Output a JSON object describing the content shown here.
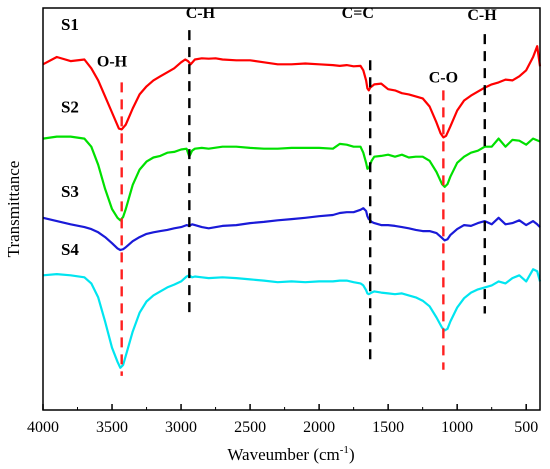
{
  "chart_data": {
    "type": "line",
    "title": "",
    "xlabel": "Waveumber (cm",
    "xlabel_sup": "-1",
    "xlabel_end": ")",
    "ylabel": "Transmittance",
    "xlim": [
      4000,
      400
    ],
    "x_reversed": true,
    "xticks": [
      "4000",
      "3500",
      "3000",
      "2500",
      "2000",
      "1500",
      "1000",
      "500"
    ],
    "xtick_values": [
      4000,
      3500,
      3000,
      2500,
      2000,
      1500,
      1000,
      500
    ],
    "ylim": [
      0,
      10
    ],
    "y_ticks_shown": false,
    "grid": false,
    "series": [
      {
        "name": "S1",
        "color": "#ff0000",
        "x": [
          4000,
          3900,
          3800,
          3700,
          3650,
          3600,
          3550,
          3500,
          3450,
          3430,
          3400,
          3350,
          3300,
          3250,
          3200,
          3150,
          3100,
          3050,
          3000,
          2970,
          2950,
          2930,
          2900,
          2850,
          2800,
          2750,
          2700,
          2600,
          2500,
          2400,
          2300,
          2200,
          2100,
          2000,
          1900,
          1850,
          1800,
          1750,
          1700,
          1680,
          1660,
          1650,
          1640,
          1630,
          1600,
          1550,
          1500,
          1450,
          1400,
          1350,
          1300,
          1250,
          1200,
          1150,
          1120,
          1100,
          1080,
          1050,
          1000,
          950,
          900,
          850,
          800,
          750,
          700,
          650,
          600,
          550,
          500,
          450,
          420,
          400
        ],
        "y": [
          8.6,
          8.78,
          8.68,
          8.72,
          8.5,
          8.2,
          7.8,
          7.4,
          7.0,
          6.98,
          7.1,
          7.5,
          7.85,
          8.05,
          8.2,
          8.3,
          8.4,
          8.5,
          8.65,
          8.72,
          8.68,
          8.6,
          8.72,
          8.75,
          8.74,
          8.75,
          8.72,
          8.7,
          8.7,
          8.65,
          8.6,
          8.6,
          8.62,
          8.6,
          8.58,
          8.56,
          8.58,
          8.55,
          8.56,
          8.45,
          8.2,
          8.0,
          7.95,
          8.02,
          8.1,
          8.12,
          7.98,
          7.95,
          7.88,
          7.85,
          7.8,
          7.75,
          7.55,
          7.15,
          6.88,
          6.78,
          6.82,
          7.05,
          7.45,
          7.7,
          7.82,
          7.92,
          8.02,
          8.1,
          8.15,
          8.22,
          8.2,
          8.3,
          8.45,
          8.78,
          9.05,
          8.55
        ]
      },
      {
        "name": "S2",
        "color": "#00e000",
        "x": [
          4000,
          3900,
          3800,
          3700,
          3650,
          3600,
          3550,
          3500,
          3460,
          3440,
          3420,
          3400,
          3350,
          3300,
          3250,
          3200,
          3150,
          3100,
          3050,
          3000,
          2960,
          2940,
          2920,
          2900,
          2850,
          2800,
          2700,
          2600,
          2500,
          2400,
          2300,
          2200,
          2100,
          2000,
          1900,
          1850,
          1800,
          1750,
          1700,
          1680,
          1660,
          1650,
          1640,
          1630,
          1620,
          1600,
          1550,
          1500,
          1450,
          1400,
          1350,
          1300,
          1250,
          1200,
          1150,
          1110,
          1090,
          1070,
          1050,
          1000,
          950,
          900,
          850,
          800,
          750,
          700,
          650,
          600,
          550,
          500,
          450,
          400
        ],
        "y": [
          6.75,
          6.8,
          6.8,
          6.75,
          6.55,
          6.1,
          5.5,
          5.0,
          4.78,
          4.72,
          4.8,
          5.0,
          5.6,
          5.98,
          6.18,
          6.28,
          6.32,
          6.4,
          6.42,
          6.48,
          6.5,
          6.3,
          6.45,
          6.5,
          6.52,
          6.5,
          6.55,
          6.55,
          6.52,
          6.5,
          6.5,
          6.52,
          6.52,
          6.52,
          6.5,
          6.62,
          6.6,
          6.55,
          6.55,
          6.4,
          6.15,
          6.0,
          6.02,
          6.1,
          6.2,
          6.3,
          6.32,
          6.35,
          6.3,
          6.35,
          6.28,
          6.3,
          6.3,
          6.2,
          5.92,
          5.62,
          5.55,
          5.62,
          5.8,
          6.15,
          6.3,
          6.4,
          6.45,
          6.55,
          6.55,
          6.75,
          6.55,
          6.72,
          6.7,
          6.6,
          6.75,
          6.68
        ]
      },
      {
        "name": "S3",
        "color": "#1a1ad8",
        "x": [
          4000,
          3900,
          3800,
          3700,
          3650,
          3600,
          3550,
          3500,
          3460,
          3440,
          3420,
          3400,
          3350,
          3300,
          3250,
          3200,
          3150,
          3100,
          3050,
          3000,
          2960,
          2940,
          2920,
          2900,
          2850,
          2800,
          2700,
          2600,
          2500,
          2400,
          2300,
          2200,
          2100,
          2000,
          1900,
          1850,
          1800,
          1750,
          1700,
          1680,
          1660,
          1650,
          1640,
          1630,
          1620,
          1600,
          1550,
          1500,
          1450,
          1400,
          1350,
          1300,
          1250,
          1200,
          1150,
          1110,
          1090,
          1070,
          1050,
          1000,
          950,
          900,
          850,
          800,
          750,
          700,
          650,
          600,
          550,
          500,
          450,
          420,
          400
        ],
        "y": [
          4.78,
          4.7,
          4.62,
          4.55,
          4.5,
          4.42,
          4.3,
          4.15,
          4.02,
          3.98,
          4.0,
          4.05,
          4.2,
          4.3,
          4.38,
          4.42,
          4.45,
          4.48,
          4.52,
          4.55,
          4.6,
          4.58,
          4.62,
          4.6,
          4.55,
          4.52,
          4.58,
          4.6,
          4.65,
          4.68,
          4.72,
          4.75,
          4.78,
          4.82,
          4.85,
          4.9,
          4.92,
          4.92,
          4.98,
          5.02,
          4.95,
          4.82,
          4.75,
          4.72,
          4.68,
          4.65,
          4.6,
          4.6,
          4.58,
          4.55,
          4.52,
          4.48,
          4.45,
          4.45,
          4.4,
          4.28,
          4.22,
          4.25,
          4.35,
          4.5,
          4.6,
          4.58,
          4.65,
          4.7,
          4.62,
          4.78,
          4.62,
          4.65,
          4.72,
          4.6,
          4.7,
          4.62,
          4.55
        ]
      },
      {
        "name": "S4",
        "color": "#00e5f0",
        "x": [
          4000,
          3900,
          3800,
          3700,
          3650,
          3600,
          3550,
          3500,
          3460,
          3440,
          3420,
          3400,
          3350,
          3300,
          3250,
          3200,
          3150,
          3100,
          3050,
          3000,
          2960,
          2940,
          2920,
          2900,
          2850,
          2800,
          2700,
          2600,
          2500,
          2400,
          2300,
          2200,
          2100,
          2000,
          1900,
          1850,
          1800,
          1750,
          1700,
          1680,
          1660,
          1650,
          1640,
          1630,
          1620,
          1600,
          1550,
          1500,
          1450,
          1400,
          1350,
          1300,
          1250,
          1200,
          1150,
          1110,
          1090,
          1070,
          1050,
          1000,
          950,
          900,
          850,
          800,
          750,
          700,
          650,
          600,
          550,
          500,
          450,
          420,
          400
        ],
        "y": [
          3.35,
          3.38,
          3.35,
          3.3,
          3.15,
          2.8,
          2.2,
          1.55,
          1.2,
          1.05,
          1.12,
          1.35,
          1.95,
          2.42,
          2.7,
          2.85,
          2.95,
          3.05,
          3.12,
          3.2,
          3.32,
          3.35,
          3.3,
          3.32,
          3.3,
          3.28,
          3.3,
          3.28,
          3.25,
          3.22,
          3.18,
          3.2,
          3.18,
          3.2,
          3.2,
          3.22,
          3.22,
          3.18,
          3.15,
          3.1,
          2.98,
          2.9,
          2.88,
          2.9,
          2.92,
          2.95,
          2.92,
          2.9,
          2.88,
          2.9,
          2.85,
          2.8,
          2.72,
          2.58,
          2.3,
          2.05,
          1.98,
          2.02,
          2.2,
          2.55,
          2.78,
          2.92,
          3.0,
          3.05,
          3.1,
          3.2,
          3.15,
          3.28,
          3.35,
          3.2,
          3.5,
          3.45,
          3.2
        ]
      }
    ],
    "sample_labels": [
      {
        "text": "S1",
        "x": 3870,
        "y": 9.45
      },
      {
        "text": "S2",
        "x": 3870,
        "y": 7.4
      },
      {
        "text": "S3",
        "x": 3870,
        "y": 5.3
      },
      {
        "text": "S4",
        "x": 3870,
        "y": 3.85
      }
    ],
    "peak_lines": [
      {
        "x": 3430,
        "y_top": 8.15,
        "y_bottom": 0.85,
        "color": "#ff2020"
      },
      {
        "x": 2940,
        "y_top": 9.45,
        "y_bottom": 2.35,
        "color": "#000000"
      },
      {
        "x": 1630,
        "y_top": 8.7,
        "y_bottom": 1.25,
        "color": "#000000"
      },
      {
        "x": 1100,
        "y_top": 7.95,
        "y_bottom": 1.0,
        "color": "#ff2020"
      },
      {
        "x": 800,
        "y_top": 9.35,
        "y_bottom": 2.4,
        "color": "#000000"
      }
    ],
    "annotations": [
      {
        "text": "O-H",
        "x": 3500,
        "y": 8.55
      },
      {
        "text": "C-H",
        "x": 2860,
        "y": 9.75
      },
      {
        "text": "C=C",
        "x": 1720,
        "y": 9.75
      },
      {
        "text": "C-O",
        "x": 1100,
        "y": 8.15
      },
      {
        "text": "C-H",
        "x": 820,
        "y": 9.7
      }
    ]
  }
}
